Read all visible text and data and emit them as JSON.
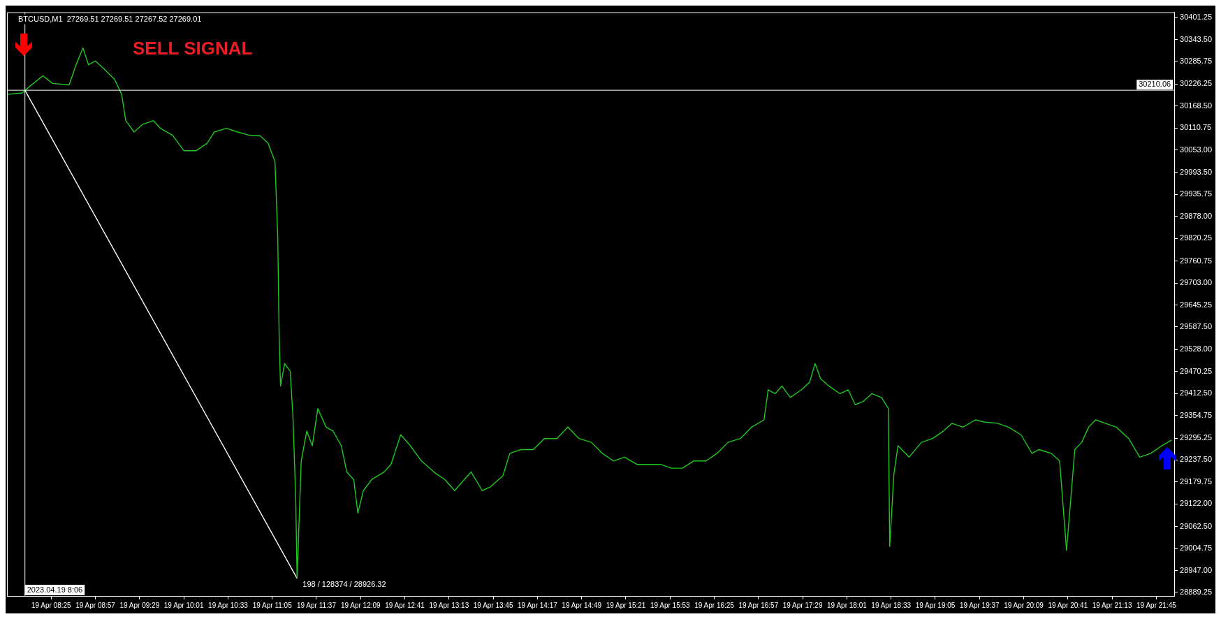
{
  "chart_data": {
    "type": "line",
    "annotations": [
      "BTCUSD,M1  27269.51 27269.51 27267.52 27269.01",
      "SELL SIGNAL",
      {
        "text": "198 / 128374 / 28926.32",
        "x": "2023-04-19T11:23",
        "y": 28926.32
      }
    ],
    "series": [
      {
        "color": "#1ec81e",
        "x": [
          "2023-04-19T07:53",
          "2023-04-19T08:04",
          "2023-04-19T08:10",
          "2023-04-19T08:19",
          "2023-04-19T08:26",
          "2023-04-19T08:38",
          "2023-04-19T08:43",
          "2023-04-19T08:48",
          "2023-04-19T08:52",
          "2023-04-19T08:57",
          "2023-04-19T09:03",
          "2023-04-19T09:11",
          "2023-04-19T09:16",
          "2023-04-19T09:19",
          "2023-04-19T09:25",
          "2023-04-19T09:31",
          "2023-04-19T09:39",
          "2023-04-19T09:44",
          "2023-04-19T09:53",
          "2023-04-19T10:01",
          "2023-04-19T10:10",
          "2023-04-19T10:18",
          "2023-04-19T10:23",
          "2023-04-19T10:32",
          "2023-04-19T10:40",
          "2023-04-19T10:49",
          "2023-04-19T10:56",
          "2023-04-19T11:02",
          "2023-04-19T11:07",
          "2023-04-19T11:09",
          "2023-04-19T11:10",
          "2023-04-19T11:11",
          "2023-04-19T11:14",
          "2023-04-19T11:18",
          "2023-04-19T11:20",
          "2023-04-19T11:22",
          "2023-04-19T11:23",
          "2023-04-19T11:26",
          "2023-04-19T11:30",
          "2023-04-19T11:34",
          "2023-04-19T11:38",
          "2023-04-19T11:44",
          "2023-04-19T11:49",
          "2023-04-19T11:55",
          "2023-04-19T11:59",
          "2023-04-19T12:04",
          "2023-04-19T12:07",
          "2023-04-19T12:11",
          "2023-04-19T12:17",
          "2023-04-19T12:26",
          "2023-04-19T12:31",
          "2023-04-19T12:38",
          "2023-04-19T12:45",
          "2023-04-19T12:53",
          "2023-04-19T13:02",
          "2023-04-19T13:10",
          "2023-04-19T13:17",
          "2023-04-19T13:24",
          "2023-04-19T13:29",
          "2023-04-19T13:37",
          "2023-04-19T13:43",
          "2023-04-19T13:52",
          "2023-04-19T13:57",
          "2023-04-19T14:05",
          "2023-04-19T14:14",
          "2023-04-19T14:22",
          "2023-04-19T14:31",
          "2023-04-19T14:39",
          "2023-04-19T14:47",
          "2023-04-19T14:56",
          "2023-04-19T15:04",
          "2023-04-19T15:12",
          "2023-04-19T15:20",
          "2023-04-19T15:29",
          "2023-04-19T15:37",
          "2023-04-19T15:46",
          "2023-04-19T15:54",
          "2023-04-19T16:02",
          "2023-04-19T16:10",
          "2023-04-19T16:19",
          "2023-04-19T16:27",
          "2023-04-19T16:35",
          "2023-04-19T16:44",
          "2023-04-19T16:52",
          "2023-04-19T17:01",
          "2023-04-19T17:04",
          "2023-04-19T17:09",
          "2023-04-19T17:14",
          "2023-04-19T17:20",
          "2023-04-19T17:28",
          "2023-04-19T17:34",
          "2023-04-19T17:38",
          "2023-04-19T17:42",
          "2023-04-19T17:48",
          "2023-04-19T17:56",
          "2023-04-19T18:02",
          "2023-04-19T18:07",
          "2023-04-19T18:13",
          "2023-04-19T18:19",
          "2023-04-19T18:26",
          "2023-04-19T18:31",
          "2023-04-19T18:32",
          "2023-04-19T18:35",
          "2023-04-19T18:38",
          "2023-04-19T18:46",
          "2023-04-19T18:55",
          "2023-04-19T19:03",
          "2023-04-19T19:11",
          "2023-04-19T19:17",
          "2023-04-19T19:25",
          "2023-04-19T19:34",
          "2023-04-19T19:41",
          "2023-04-19T19:50",
          "2023-04-19T19:58",
          "2023-04-19T20:07",
          "2023-04-19T20:15",
          "2023-04-19T20:20",
          "2023-04-19T20:29",
          "2023-04-19T20:35",
          "2023-04-19T20:40",
          "2023-04-19T20:46",
          "2023-04-19T20:51",
          "2023-04-19T20:56",
          "2023-04-19T21:01",
          "2023-04-19T21:08",
          "2023-04-19T21:16",
          "2023-04-19T21:25",
          "2023-04-19T21:33",
          "2023-04-19T21:41",
          "2023-04-19T21:49",
          "2023-04-19T21:56"
        ],
        "values": [
          30199,
          30203,
          30222,
          30248,
          30228,
          30224,
          30277,
          30321,
          30277,
          30287,
          30267,
          30238,
          30199,
          30130,
          30100,
          30120,
          30130,
          30110,
          30091,
          30051,
          30051,
          30071,
          30100,
          30110,
          30100,
          30091,
          30091,
          30071,
          30022,
          29825,
          29570,
          29432,
          29491,
          29471,
          29353,
          29137,
          28926.32,
          29235,
          29314,
          29275,
          29373,
          29324,
          29314,
          29275,
          29206,
          29186,
          29098,
          29157,
          29186,
          29206,
          29226,
          29304,
          29275,
          29235,
          29206,
          29186,
          29157,
          29186,
          29206,
          29157,
          29167,
          29196,
          29255,
          29265,
          29265,
          29294,
          29294,
          29324,
          29294,
          29284,
          29255,
          29235,
          29245,
          29226,
          29226,
          29226,
          29216,
          29216,
          29235,
          29235,
          29255,
          29284,
          29294,
          29324,
          29343,
          29422,
          29412,
          29432,
          29402,
          29422,
          29442,
          29491,
          29451,
          29432,
          29412,
          29422,
          29383,
          29392,
          29412,
          29402,
          29373,
          29010,
          29200,
          29275,
          29245,
          29284,
          29294,
          29314,
          29334,
          29324,
          29343,
          29337,
          29334,
          29324,
          29304,
          29255,
          29265,
          29255,
          29235,
          29000,
          29265,
          29284,
          29324,
          29343,
          29334,
          29324,
          29294,
          29245,
          29255,
          29275,
          29290
        ]
      },
      {
        "color": "#ffffff",
        "x": [
          "2023-04-19T08:06",
          "2023-04-19T11:23"
        ],
        "values": [
          30210.06,
          28926.32
        ]
      }
    ],
    "xlim": [
      "2023-04-19T07:53",
      "2023-04-19T21:58"
    ],
    "xticks": [
      {
        "value": "2023-04-19T08:25",
        "label": "19 Apr 08:25"
      },
      {
        "value": "2023-04-19T08:57",
        "label": "19 Apr 08:57"
      },
      {
        "value": "2023-04-19T09:29",
        "label": "19 Apr 09:29"
      },
      {
        "value": "2023-04-19T10:01",
        "label": "19 Apr 10:01"
      },
      {
        "value": "2023-04-19T10:33",
        "label": "19 Apr 10:33"
      },
      {
        "value": "2023-04-19T11:05",
        "label": "19 Apr 11:05"
      },
      {
        "value": "2023-04-19T11:37",
        "label": "19 Apr 11:37"
      },
      {
        "value": "2023-04-19T12:09",
        "label": "19 Apr 12:09"
      },
      {
        "value": "2023-04-19T12:41",
        "label": "19 Apr 12:41"
      },
      {
        "value": "2023-04-19T13:13",
        "label": "19 Apr 13:13"
      },
      {
        "value": "2023-04-19T13:45",
        "label": "19 Apr 13:45"
      },
      {
        "value": "2023-04-19T14:17",
        "label": "19 Apr 14:17"
      },
      {
        "value": "2023-04-19T14:49",
        "label": "19 Apr 14:49"
      },
      {
        "value": "2023-04-19T15:21",
        "label": "19 Apr 15:21"
      },
      {
        "value": "2023-04-19T15:53",
        "label": "19 Apr 15:53"
      },
      {
        "value": "2023-04-19T16:25",
        "label": "19 Apr 16:25"
      },
      {
        "value": "2023-04-19T16:57",
        "label": "19 Apr 16:57"
      },
      {
        "value": "2023-04-19T17:29",
        "label": "19 Apr 17:29"
      },
      {
        "value": "2023-04-19T18:01",
        "label": "19 Apr 18:01"
      },
      {
        "value": "2023-04-19T18:33",
        "label": "19 Apr 18:33"
      },
      {
        "value": "2023-04-19T19:05",
        "label": "19 Apr 19:05"
      },
      {
        "value": "2023-04-19T19:37",
        "label": "19 Apr 19:37"
      },
      {
        "value": "2023-04-19T20:09",
        "label": "19 Apr 20:09"
      },
      {
        "value": "2023-04-19T20:41",
        "label": "19 Apr 20:41"
      },
      {
        "value": "2023-04-19T21:13",
        "label": "19 Apr 21:13"
      },
      {
        "value": "2023-04-19T21:45",
        "label": "19 Apr 21:45"
      }
    ],
    "ylim": [
      28880,
      30415
    ],
    "yticks": [
      {
        "value": 28889.25,
        "label": "28889.25"
      },
      {
        "value": 28947,
        "label": "28947.00"
      },
      {
        "value": 29004.75,
        "label": "29004.75"
      },
      {
        "value": 29062.5,
        "label": "29062.50"
      },
      {
        "value": 29122,
        "label": "29122.00"
      },
      {
        "value": 29179.75,
        "label": "29179.75"
      },
      {
        "value": 29237.5,
        "label": "29237.50"
      },
      {
        "value": 29295.25,
        "label": "29295.25"
      },
      {
        "value": 29354.75,
        "label": "29354.75"
      },
      {
        "value": 29412.5,
        "label": "29412.50"
      },
      {
        "value": 29470.25,
        "label": "29470.25"
      },
      {
        "value": 29528,
        "label": "29528.00"
      },
      {
        "value": 29587.5,
        "label": "29587.50"
      },
      {
        "value": 29645.25,
        "label": "29645.25"
      },
      {
        "value": 29703,
        "label": "29703.00"
      },
      {
        "value": 29760.75,
        "label": "29760.75"
      },
      {
        "value": 29820.25,
        "label": "29820.25"
      },
      {
        "value": 29878,
        "label": "29878.00"
      },
      {
        "value": 29935.75,
        "label": "29935.75"
      },
      {
        "value": 29993.5,
        "label": "29993.50"
      },
      {
        "value": 30053,
        "label": "30053.00"
      },
      {
        "value": 30110.75,
        "label": "30110.75"
      },
      {
        "value": 30168.5,
        "label": "30168.50"
      },
      {
        "value": 30226.25,
        "label": "30226.25"
      },
      {
        "value": 30285.75,
        "label": "30285.75"
      },
      {
        "value": 30343.5,
        "label": "30343.50"
      },
      {
        "value": 30401.25,
        "label": "30401.25"
      }
    ],
    "ref_lines": [
      {
        "axis": "y",
        "value": 30210.06,
        "label": "30210.06",
        "color": "#ffffff"
      },
      {
        "axis": "x",
        "value": "2023-04-19T08:06",
        "label": "2023.04.19 8:06",
        "color": "#ffffff"
      }
    ],
    "grid": false,
    "legend": false,
    "marker": "none",
    "line_style": "solid"
  }
}
